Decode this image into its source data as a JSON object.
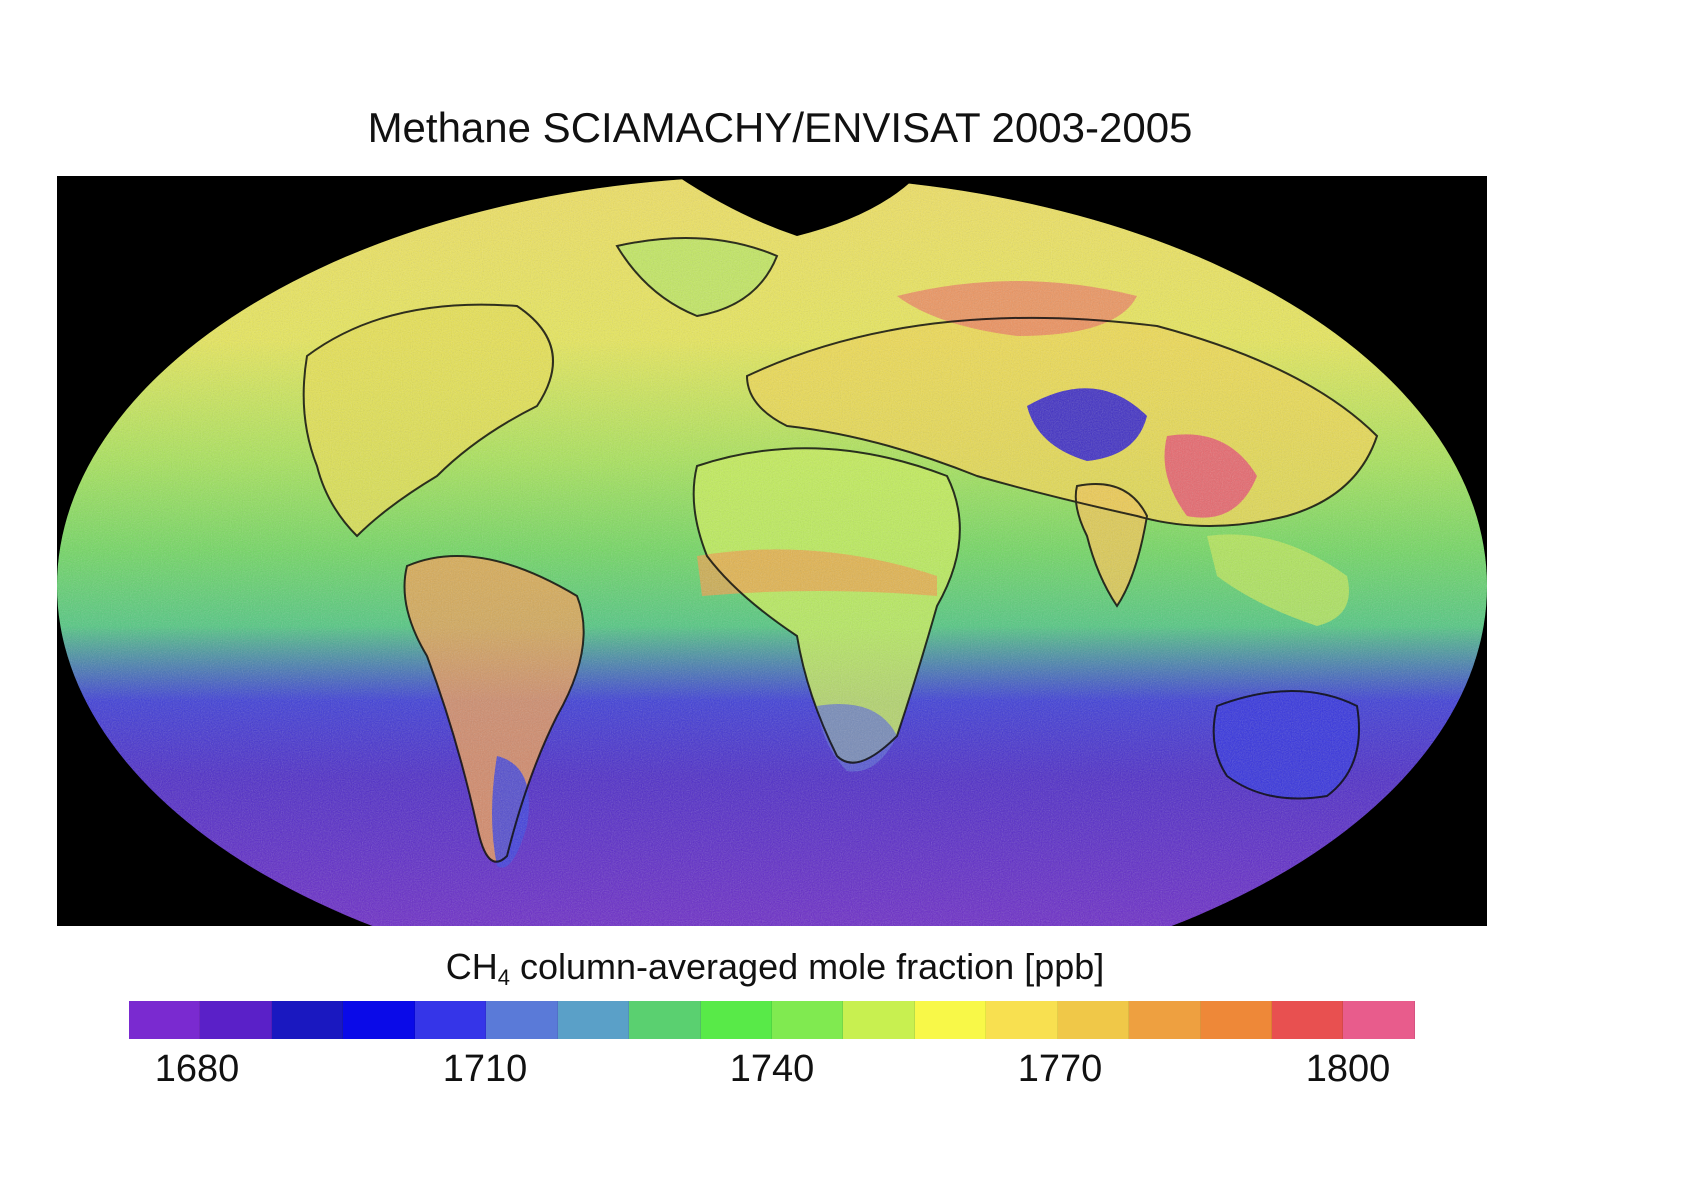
{
  "title": "Methane SCIAMACHY/ENVISAT 2003-2005",
  "colorbar": {
    "label_main": "CH",
    "label_sub": "4",
    "label_rest": " column-averaged mole fraction [ppb]",
    "colors": [
      "#7a2ad0",
      "#5a20c8",
      "#1a18c0",
      "#0a0ae8",
      "#3535e8",
      "#5a7ad8",
      "#5aa0c8",
      "#5ad070",
      "#58ea48",
      "#80ea50",
      "#c8f050",
      "#f8f848",
      "#f8e050",
      "#f0c848",
      "#eea040",
      "#ee8838",
      "#e85050",
      "#e85c8c"
    ],
    "ticks": [
      "1680",
      "1710",
      "1740",
      "1770",
      "1800"
    ]
  }
}
